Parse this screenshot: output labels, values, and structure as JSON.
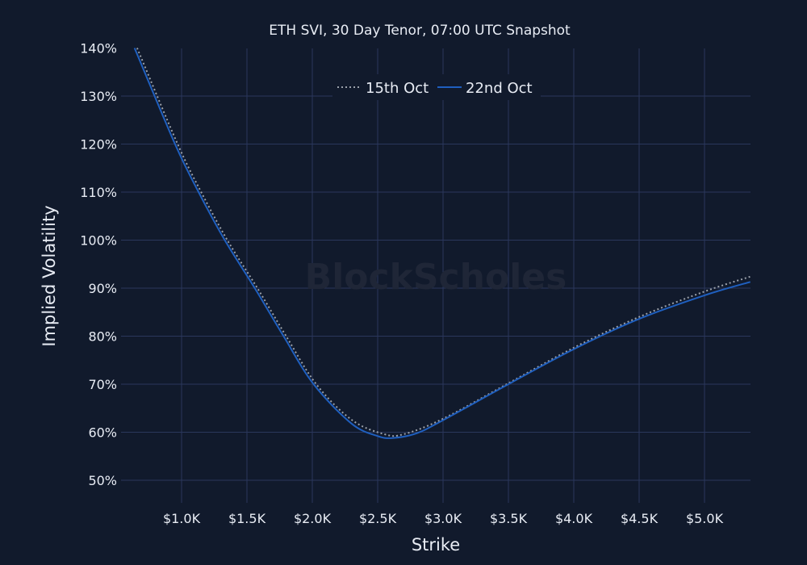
{
  "chart_data": {
    "type": "line",
    "title": "ETH SVI, 30 Day Tenor, 07:00 UTC Snapshot",
    "xlabel": "Strike",
    "ylabel": "Implied Volatility",
    "xlim": [
      0.6,
      5.35
    ],
    "ylim": [
      45,
      140
    ],
    "x_unit": "thousand USD",
    "x_ticks": [
      1.0,
      1.5,
      2.0,
      2.5,
      3.0,
      3.5,
      4.0,
      4.5,
      5.0
    ],
    "x_tick_labels": [
      "$1.0K",
      "$1.5K",
      "$2.0K",
      "$2.5K",
      "$3.0K",
      "$3.5K",
      "$4.0K",
      "$4.5K",
      "$5.0K"
    ],
    "y_ticks": [
      50,
      60,
      70,
      80,
      90,
      100,
      110,
      120,
      130,
      140
    ],
    "y_tick_labels": [
      "50%",
      "60%",
      "70%",
      "80%",
      "90%",
      "100%",
      "110%",
      "120%",
      "130%",
      "140%"
    ],
    "grid": true,
    "legend_position": "top-center",
    "watermark": "BlockScholes",
    "series": [
      {
        "name": "15th Oct",
        "style": "dotted",
        "color": "#9aa0aa",
        "x": [
          0.66,
          0.97,
          1.15,
          1.35,
          1.58,
          1.8,
          2.03,
          2.3,
          2.55,
          2.7,
          3.0,
          3.5,
          4.0,
          4.5,
          5.0,
          5.35
        ],
        "y": [
          140,
          120,
          110,
          100,
          90,
          80,
          70,
          62.6,
          59.6,
          59.6,
          62.8,
          70.2,
          77.6,
          84.0,
          89.3,
          92.4
        ]
      },
      {
        "name": "22nd Oct",
        "style": "solid",
        "color": "#1f5fbf",
        "x": [
          0.64,
          0.95,
          1.13,
          1.33,
          1.56,
          1.78,
          2.01,
          2.3,
          2.5,
          2.62,
          2.8,
          3.0,
          3.5,
          4.0,
          4.5,
          5.0,
          5.35
        ],
        "y": [
          140,
          120,
          110,
          100,
          90,
          80,
          70,
          61.8,
          59.2,
          58.8,
          59.8,
          62.5,
          70.0,
          77.3,
          83.6,
          88.5,
          91.3
        ]
      }
    ]
  },
  "legend": {
    "items": [
      {
        "label": "15th Oct"
      },
      {
        "label": "22nd Oct"
      }
    ]
  }
}
